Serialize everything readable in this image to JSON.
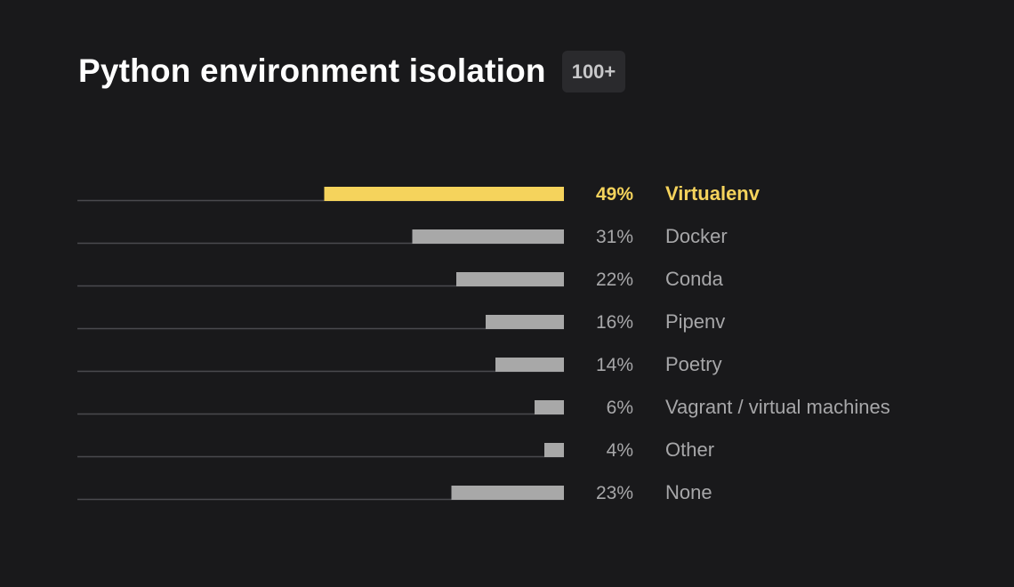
{
  "header": {
    "title": "Python environment isolation",
    "badge": "100+"
  },
  "colors": {
    "highlight": "#f5d35c",
    "bar": "#a8a8a8",
    "track": "#4a4a4e",
    "label": "#a7a7a9"
  },
  "chart_data": {
    "type": "bar",
    "orientation": "horizontal",
    "value_unit": "%",
    "xlim": [
      0,
      100
    ],
    "grid": false,
    "categories": [
      "Virtualenv",
      "Docker",
      "Conda",
      "Pipenv",
      "Poetry",
      "Vagrant / virtual machines",
      "Other",
      "None"
    ],
    "values": [
      49,
      31,
      22,
      16,
      14,
      6,
      4,
      23
    ],
    "labels": [
      "49%",
      "31%",
      "22%",
      "16%",
      "14%",
      "6%",
      "4%",
      "23%"
    ],
    "highlighted": "Virtualenv"
  }
}
